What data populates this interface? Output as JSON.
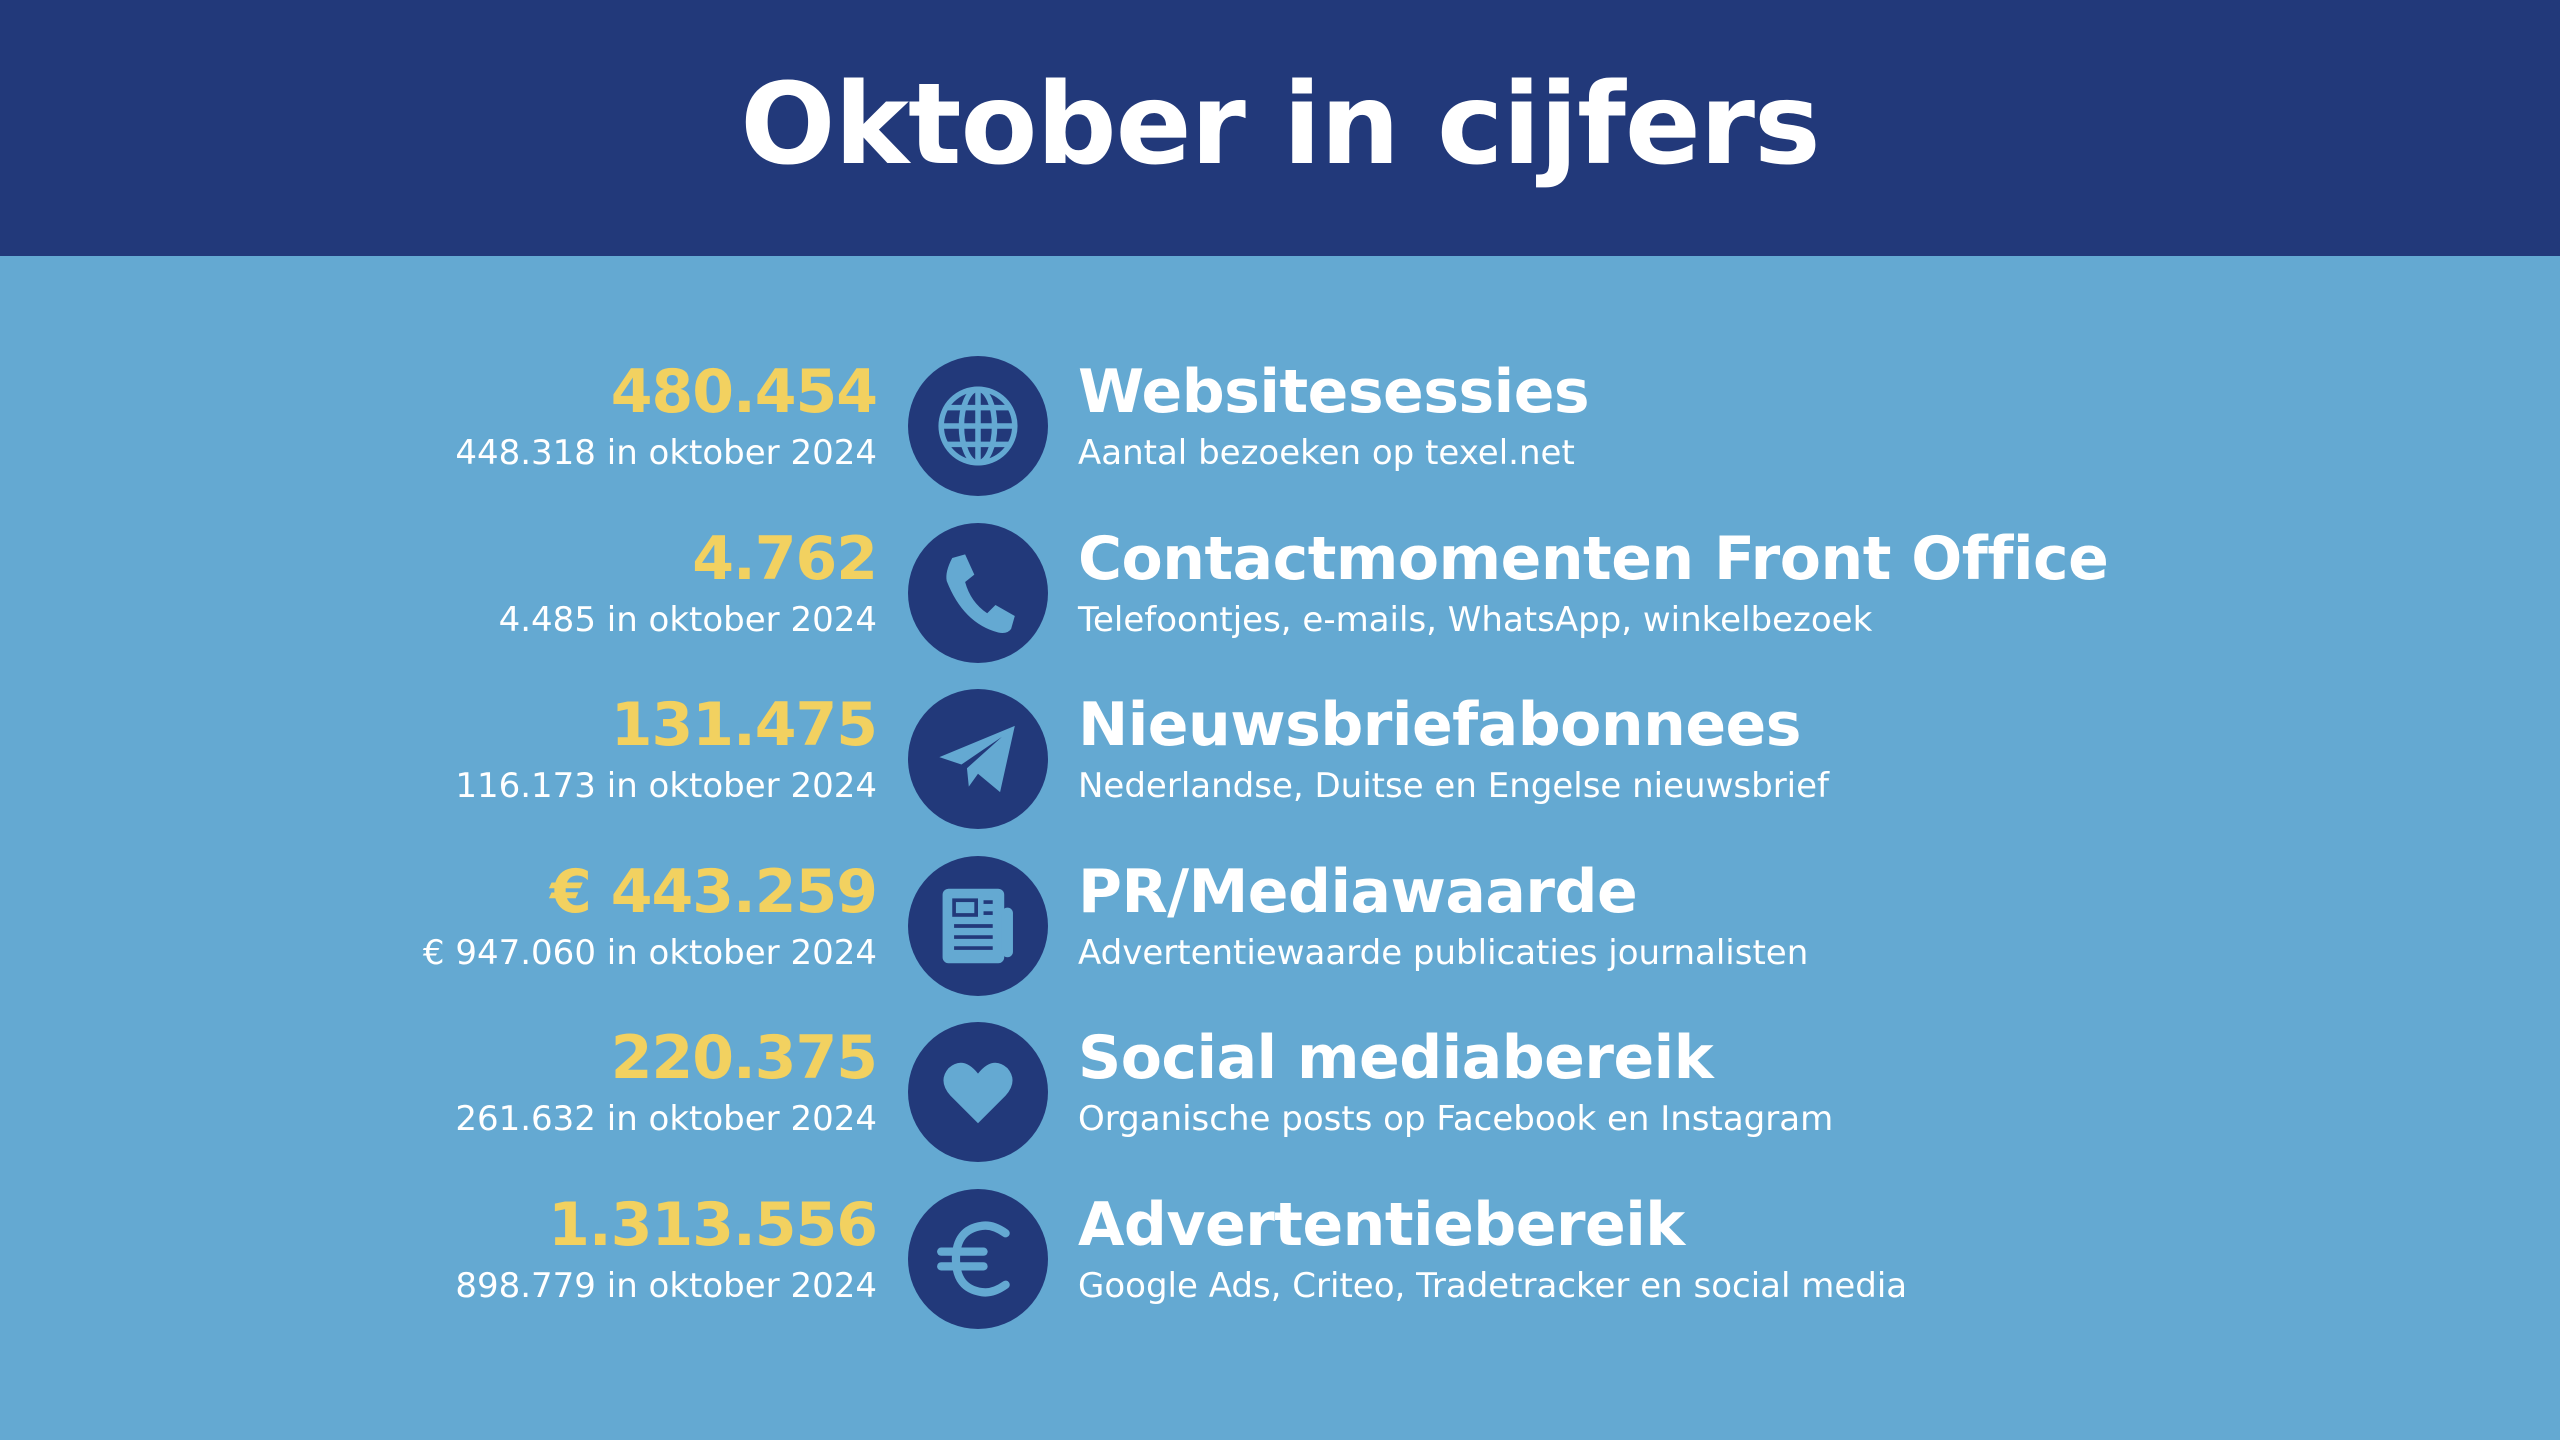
{
  "title": "Oktober in cijfers",
  "colors": {
    "header": "#22397a",
    "background": "#64a9d2",
    "value": "#f2d160",
    "icon_circle": "#22397a",
    "icon": "#64a9d2"
  },
  "stats": [
    {
      "value": "480.454",
      "previous": "448.318 in oktober 2024",
      "icon": "globe-icon",
      "label": "Websitesessies",
      "description": "Aantal bezoeken op texel.net"
    },
    {
      "value": "4.762",
      "previous": "4.485 in oktober 2024",
      "icon": "phone-icon",
      "label": "Contactmomenten Front Office",
      "description": "Telefoontjes, e-mails, WhatsApp, winkelbezoek"
    },
    {
      "value": "131.475",
      "previous": "116.173 in oktober 2024",
      "icon": "paper-plane-icon",
      "label": "Nieuwsbriefabonnees",
      "description": "Nederlandse, Duitse en Engelse nieuwsbrief"
    },
    {
      "value": "€ 443.259",
      "previous": "€ 947.060 in oktober 2024",
      "icon": "newspaper-icon",
      "label": "PR/Mediawaarde",
      "description": "Advertentiewaarde publicaties journalisten"
    },
    {
      "value": "220.375",
      "previous": "261.632 in oktober 2024",
      "icon": "heart-icon",
      "label": "Social mediabereik",
      "description": "Organische posts op Facebook en Instagram"
    },
    {
      "value": "1.313.556",
      "previous": "898.779 in oktober 2024",
      "icon": "euro-icon",
      "label": "Advertentiebereik",
      "description": "Google Ads, Criteo, Tradetracker en social media"
    }
  ]
}
